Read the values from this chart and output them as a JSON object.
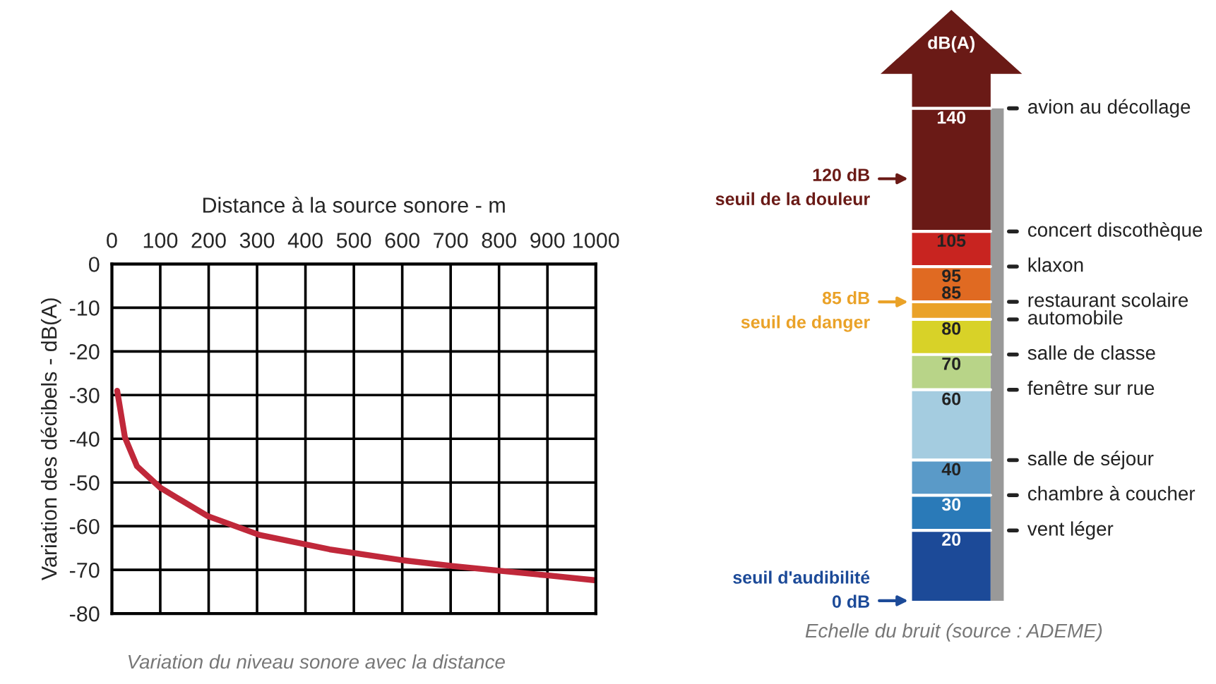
{
  "chart_data": [
    {
      "type": "line",
      "xlabel": "Distance à la source sonore - m",
      "ylabel": "Variation des décibels - dB(A)",
      "series": [
        {
          "color": "#c0283a",
          "x": [
            11,
            27,
            52,
            100,
            198,
            305,
            450,
            601,
            703,
            801,
            903,
            1000
          ],
          "values": [
            -29,
            -39.7,
            -46.3,
            -51.2,
            -57.7,
            -62,
            -65.3,
            -67.8,
            -69.1,
            -70.2,
            -71.3,
            -72.4
          ]
        }
      ],
      "xlim": [
        0,
        1000
      ],
      "xticks": [
        0,
        100,
        200,
        300,
        400,
        500,
        600,
        700,
        800,
        900,
        1000
      ],
      "ylim": [
        -80,
        0
      ],
      "yticks": [
        0,
        -10,
        -20,
        -30,
        -40,
        -50,
        -60,
        -70,
        -80
      ],
      "grid": true,
      "legend": false,
      "annotations": [
        "Variation du niveau sonore avec la distance"
      ]
    },
    {
      "type": "other",
      "categories": [
        "avion au décollage",
        "concert discothèque",
        "klaxon",
        "restaurant scolaire",
        "automobile",
        "salle de classe",
        "fenêtre sur rue",
        "salle de séjour",
        "chambre à coucher",
        "vent léger"
      ],
      "values": [
        140,
        105,
        95,
        85,
        80,
        70,
        60,
        40,
        30,
        20
      ],
      "colors": [
        "#6a1a16",
        "#c82420",
        "#e06a22",
        "#eaa228",
        "#d8d228",
        "#b8d488",
        "#a4cce0",
        "#5a9ac8",
        "#2a7ab8",
        "#1c4a98"
      ],
      "value_labels": [
        "140",
        "105",
        "95",
        "85",
        "80",
        "70",
        "60",
        "40",
        "30",
        "20"
      ],
      "annotations": [
        "dB(A)",
        "120 dB\nseuil de la douleur",
        "85 dB\nseuil de danger",
        "seuil d'audibilité\n0 dB",
        "Echelle du bruit (source : ADEME)"
      ]
    }
  ]
}
